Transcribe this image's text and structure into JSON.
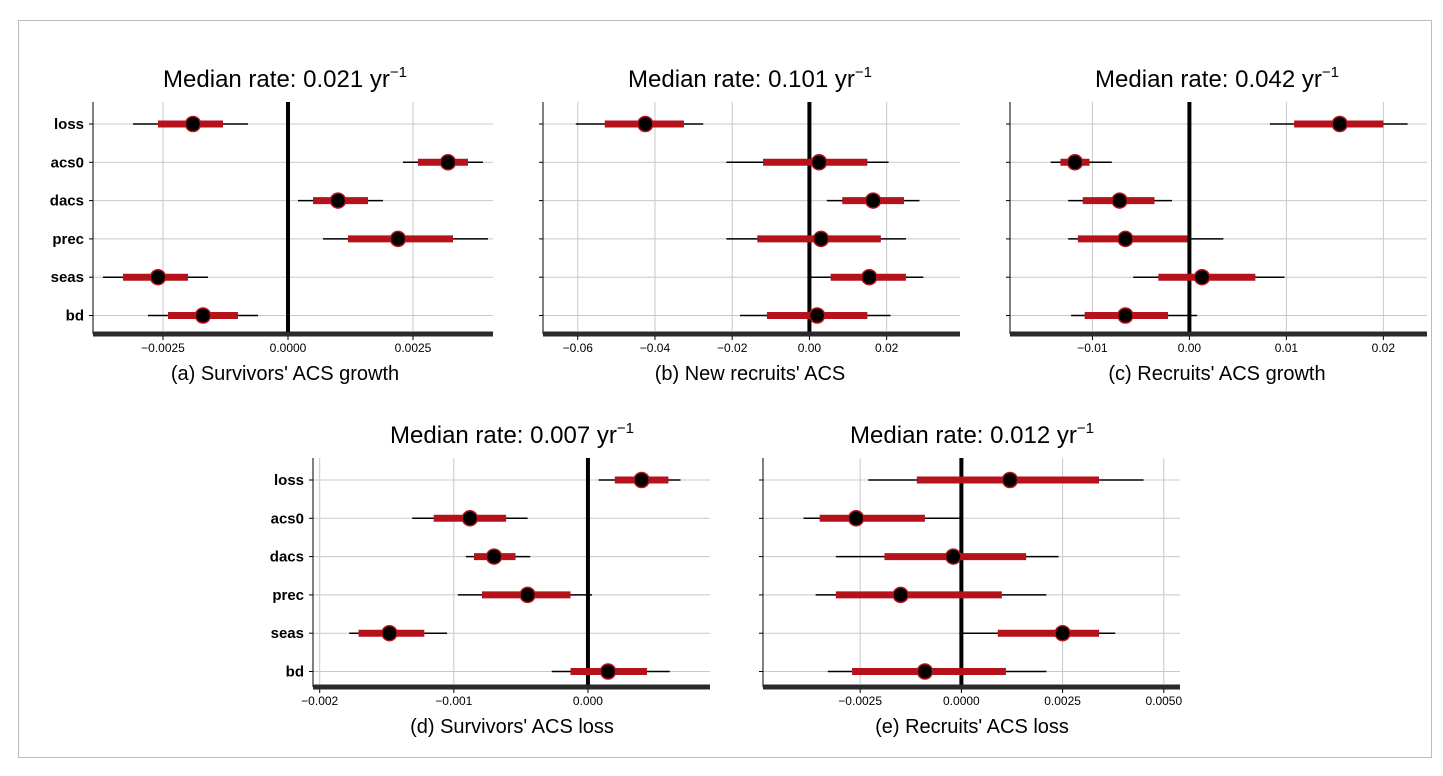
{
  "title_prefix": "Median rate: ",
  "unit": "yr",
  "unit_exponent": "−1",
  "chart_data": [
    {
      "type": "forest",
      "caption": "(a) Survivors' ACS growth",
      "median_rate": "0.021",
      "xlim": [
        -0.0039,
        0.0041
      ],
      "xticks": [
        -0.0025,
        0,
        0.0025
      ],
      "xtick_labels": [
        "−0.0025",
        "0.0000",
        "0.0025"
      ],
      "zero_line": 0,
      "grid": true,
      "categories": [
        "loss",
        "acs0",
        "dacs",
        "prec",
        "seas",
        "bd"
      ],
      "estimates": [
        -0.0019,
        0.0032,
        0.001,
        0.0022,
        -0.0026,
        -0.0017
      ],
      "inner_intervals": [
        [
          -0.0026,
          -0.0013
        ],
        [
          0.0026,
          0.0036
        ],
        [
          0.0005,
          0.0016
        ],
        [
          0.0012,
          0.0033
        ],
        [
          -0.0033,
          -0.002
        ],
        [
          -0.0024,
          -0.001
        ]
      ],
      "outer_intervals": [
        [
          -0.0031,
          -0.0008
        ],
        [
          0.0023,
          0.0039
        ],
        [
          0.0002,
          0.0019
        ],
        [
          0.0007,
          0.004
        ],
        [
          -0.0037,
          -0.0016
        ],
        [
          -0.0028,
          -0.0006
        ]
      ]
    },
    {
      "type": "forest",
      "caption": "(b) New recruits' ACS",
      "median_rate": "0.101",
      "xlim": [
        -0.069,
        0.039
      ],
      "xticks": [
        -0.06,
        -0.04,
        -0.02,
        0,
        0.02
      ],
      "xtick_labels": [
        "−0.06",
        "−0.04",
        "−0.02",
        "0.00",
        "0.02"
      ],
      "zero_line": 0,
      "grid": true,
      "categories": [
        "loss",
        "acs0",
        "dacs",
        "prec",
        "seas",
        "bd"
      ],
      "estimates": [
        -0.0425,
        0.0025,
        0.0165,
        0.003,
        0.0155,
        0.002
      ],
      "inner_intervals": [
        [
          -0.053,
          -0.0325
        ],
        [
          -0.012,
          0.015
        ],
        [
          0.0085,
          0.0245
        ],
        [
          -0.0135,
          0.0185
        ],
        [
          0.0055,
          0.025
        ],
        [
          -0.011,
          0.015
        ]
      ],
      "outer_intervals": [
        [
          -0.0605,
          -0.0275
        ],
        [
          -0.0215,
          0.0205
        ],
        [
          0.0045,
          0.0285
        ],
        [
          -0.0215,
          0.025
        ],
        [
          -0.0005,
          0.0295
        ],
        [
          -0.018,
          0.021
        ]
      ]
    },
    {
      "type": "forest",
      "caption": "(c) Recruits' ACS growth",
      "median_rate": "0.042",
      "xlim": [
        -0.0185,
        0.0245
      ],
      "xticks": [
        -0.01,
        0,
        0.01,
        0.02
      ],
      "xtick_labels": [
        "−0.01",
        "0.00",
        "0.01",
        "0.02"
      ],
      "zero_line": 0,
      "grid": true,
      "categories": [
        "loss",
        "acs0",
        "dacs",
        "prec",
        "seas",
        "bd"
      ],
      "estimates": [
        0.0155,
        -0.0118,
        -0.0072,
        -0.0066,
        0.0013,
        -0.0066
      ],
      "inner_intervals": [
        [
          0.0108,
          0.02
        ],
        [
          -0.0133,
          -0.0103
        ],
        [
          -0.011,
          -0.0036
        ],
        [
          -0.0115,
          -0.0002
        ],
        [
          -0.0032,
          0.0068
        ],
        [
          -0.0108,
          -0.0022
        ]
      ],
      "outer_intervals": [
        [
          0.0083,
          0.0225
        ],
        [
          -0.0143,
          -0.008
        ],
        [
          -0.0125,
          -0.0018
        ],
        [
          -0.0125,
          0.0035
        ],
        [
          -0.0058,
          0.0098
        ],
        [
          -0.0122,
          0.0008
        ]
      ]
    },
    {
      "type": "forest",
      "caption": "(d) Survivors' ACS loss",
      "median_rate": "0.007",
      "xlim": [
        -0.00205,
        0.00091
      ],
      "xticks": [
        -0.002,
        -0.001,
        0
      ],
      "xtick_labels": [
        "−0.002",
        "−0.001",
        "0.000"
      ],
      "zero_line": 0,
      "grid": true,
      "categories": [
        "loss",
        "acs0",
        "dacs",
        "prec",
        "seas",
        "bd"
      ],
      "estimates": [
        0.0004,
        -0.00088,
        -0.0007,
        -0.00045,
        -0.00148,
        0.00015
      ],
      "inner_intervals": [
        [
          0.0002,
          0.0006
        ],
        [
          -0.00115,
          -0.00061
        ],
        [
          -0.00085,
          -0.00054
        ],
        [
          -0.00079,
          -0.00013
        ],
        [
          -0.00171,
          -0.00122
        ],
        [
          -0.00013,
          0.00044
        ]
      ],
      "outer_intervals": [
        [
          8e-05,
          0.00069
        ],
        [
          -0.00131,
          -0.00045
        ],
        [
          -0.00091,
          -0.00043
        ],
        [
          -0.00097,
          3e-05
        ],
        [
          -0.00178,
          -0.00105
        ],
        [
          -0.00027,
          0.00061
        ]
      ]
    },
    {
      "type": "forest",
      "caption": "(e) Recruits' ACS loss",
      "median_rate": "0.012",
      "xlim": [
        -0.0049,
        0.0054
      ],
      "xticks": [
        -0.0025,
        0,
        0.0025,
        0.005
      ],
      "xtick_labels": [
        "−0.0025",
        "0.0000",
        "0.0025",
        "0.0050"
      ],
      "zero_line": 0,
      "grid": true,
      "categories": [
        "loss",
        "acs0",
        "dacs",
        "prec",
        "seas",
        "bd"
      ],
      "estimates": [
        0.0012,
        -0.0026,
        -0.0002,
        -0.0015,
        0.0025,
        -0.0009
      ],
      "inner_intervals": [
        [
          -0.0011,
          0.0034
        ],
        [
          -0.0035,
          -0.0009
        ],
        [
          -0.0019,
          0.0016
        ],
        [
          -0.0031,
          0.001
        ],
        [
          0.0009,
          0.0034
        ],
        [
          -0.0027,
          0.0011
        ]
      ],
      "outer_intervals": [
        [
          -0.0023,
          0.0045
        ],
        [
          -0.0039,
          0.0
        ],
        [
          -0.0031,
          0.0024
        ],
        [
          -0.0036,
          0.0021
        ],
        [
          -5e-05,
          0.0038
        ],
        [
          -0.0033,
          0.0021
        ]
      ]
    }
  ]
}
